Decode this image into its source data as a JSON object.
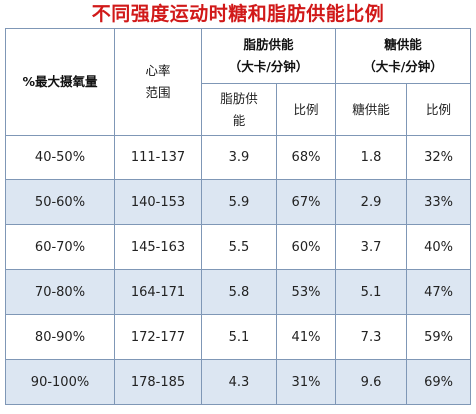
{
  "title": "不同强度运动时糖和脂肪供能比例",
  "headers": {
    "vo2max": "%最大摄氧量",
    "heart_rate_line1": "心率",
    "heart_rate_line2": "范围",
    "fat_supply_line1": "脂肪供能",
    "fat_supply_line2": "（大卡/分钟）",
    "sugar_supply_line1": "糖供能",
    "sugar_supply_line2": "（大卡/分钟）",
    "fat_energy_line1": "脂肪供",
    "fat_energy_line2": "能",
    "fat_ratio": "比例",
    "sugar_energy": "糖供能",
    "sugar_ratio": "比例"
  },
  "rows": [
    {
      "vo2max": "40-50%",
      "heart_rate": "111-137",
      "fat_energy": "3.9",
      "fat_ratio": "68%",
      "sugar_energy": "1.8",
      "sugar_ratio": "32%"
    },
    {
      "vo2max": "50-60%",
      "heart_rate": "140-153",
      "fat_energy": "5.9",
      "fat_ratio": "67%",
      "sugar_energy": "2.9",
      "sugar_ratio": "33%"
    },
    {
      "vo2max": "60-70%",
      "heart_rate": "145-163",
      "fat_energy": "5.5",
      "fat_ratio": "60%",
      "sugar_energy": "3.7",
      "sugar_ratio": "40%"
    },
    {
      "vo2max": "70-80%",
      "heart_rate": "164-171",
      "fat_energy": "5.8",
      "fat_ratio": "53%",
      "sugar_energy": "5.1",
      "sugar_ratio": "47%"
    },
    {
      "vo2max": "80-90%",
      "heart_rate": "172-177",
      "fat_energy": "5.1",
      "fat_ratio": "41%",
      "sugar_energy": "7.3",
      "sugar_ratio": "59%"
    },
    {
      "vo2max": "90-100%",
      "heart_rate": "178-185",
      "fat_energy": "4.3",
      "fat_ratio": "31%",
      "sugar_energy": "9.6",
      "sugar_ratio": "69%"
    }
  ],
  "colors": {
    "title": "#d11919",
    "border": "#7f97b6",
    "stripe": "#dce6f2",
    "background": "#ffffff"
  }
}
